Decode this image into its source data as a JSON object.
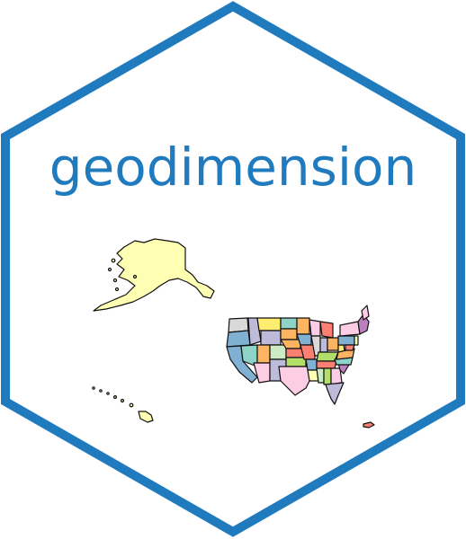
{
  "title": "geodimension",
  "colors": {
    "hex_border": "#1f7bbd",
    "title": "#1f7bbd",
    "alaska": "#ffffb3",
    "map_outline": "#111111",
    "state_palette": [
      "#8dd3c7",
      "#ffffb3",
      "#bebada",
      "#fb8072",
      "#80b1d3",
      "#fdb462",
      "#b3de69",
      "#fccde5",
      "#d9d9d9",
      "#bc80bd",
      "#ccebc5",
      "#ffed6f"
    ]
  },
  "icons": {
    "hexagon": "hexagon-border",
    "map": "us-states-map"
  }
}
